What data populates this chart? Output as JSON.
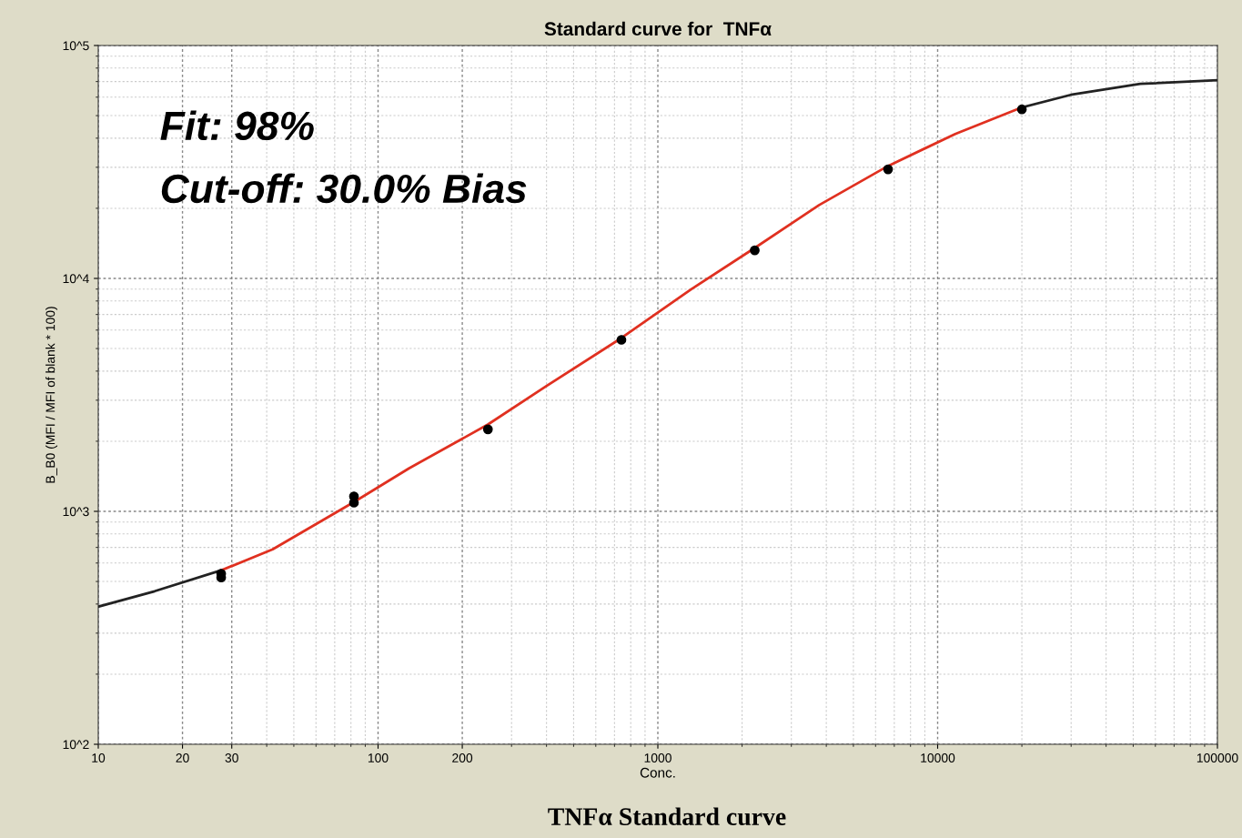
{
  "chart_data": {
    "type": "line",
    "title": "Standard curve for  TNFα",
    "xlabel": "Conc.",
    "ylabel": "B_B0 (MFI / MFI of blank * 100)",
    "annotations": [
      "Fit: 98%",
      "Cut-off: 30.0% Bias",
      "TNFα Standard curve"
    ],
    "log": "xy",
    "grid": true,
    "legend": false,
    "xlim": [
      10,
      100000
    ],
    "xticks": [
      10,
      20,
      30,
      100,
      200,
      1000,
      10000,
      100000
    ],
    "ylim": [
      100,
      100000
    ],
    "yticks": [
      {
        "value": 100,
        "label": "10^2"
      },
      {
        "value": 1000,
        "label": "10^3"
      },
      {
        "value": 10000,
        "label": "10^4"
      },
      {
        "value": 100000,
        "label": "10^5"
      }
    ],
    "series": [
      {
        "color": "#222222",
        "marker": "none",
        "x": [
          10,
          15.9,
          27.5
        ],
        "values": [
          390,
          454,
          558
        ]
      },
      {
        "color": "#e03020",
        "marker": "none",
        "x": [
          27.5,
          42,
          82,
          129,
          247,
          398,
          741,
          1320,
          2220,
          3770,
          6650,
          11560,
          20000
        ],
        "values": [
          558,
          687,
          1097,
          1530,
          2360,
          3440,
          5550,
          9010,
          13520,
          20650,
          30400,
          41700,
          54200
        ]
      },
      {
        "color": "#222222",
        "marker": "none",
        "x": [
          20000,
          29900,
          53000,
          100000
        ],
        "values": [
          54200,
          61400,
          68400,
          71000
        ]
      },
      {
        "type": "scatter",
        "color": "#000000",
        "marker": "circle",
        "x": [
          27.5,
          27.5,
          82,
          82,
          247,
          741,
          2220,
          6650,
          20000
        ],
        "values": [
          520,
          540,
          1090,
          1160,
          2250,
          5450,
          13200,
          29400,
          53200
        ]
      }
    ]
  }
}
